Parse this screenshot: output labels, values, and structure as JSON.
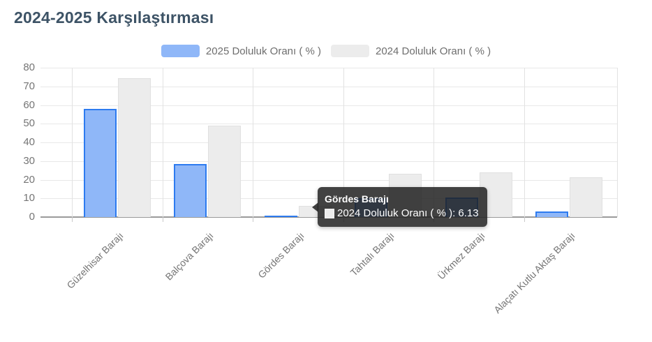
{
  "page": {
    "title": "2024-2025 Karşılaştırması"
  },
  "legend": [
    {
      "label": "2025 Doluluk Oranı ( % )",
      "color": "#8fb7f8"
    },
    {
      "label": "2024 Doluluk Oranı ( % )",
      "color": "#ececec"
    }
  ],
  "tooltip": {
    "title": "Gördes Barajı",
    "series_label": "2024 Doluluk Oranı ( % )",
    "value": "6.13",
    "line": "2024 Doluluk Oranı ( % ): 6.13",
    "swatch_color": "#ececec"
  },
  "chart_data": {
    "type": "bar",
    "title": "2024-2025 Karşılaştırması",
    "categories": [
      "Güzelhisar Barajı",
      "Balçova Barajı",
      "Gördes Barajı",
      "Tahtalı Barajı",
      "Ürkmez Barajı",
      "Alaçatı Kutlu Aktaş Barajı"
    ],
    "series": [
      {
        "name": "2025 Doluluk Oranı ( % )",
        "color": "#8fb7f8",
        "border_color": "#2d7bf0",
        "values": [
          58,
          28.5,
          0.6,
          10,
          10.5,
          3
        ]
      },
      {
        "name": "2024 Doluluk Oranı ( % )",
        "color": "#ececec",
        "border_color": "#e0e0e0",
        "values": [
          74.5,
          49,
          6.13,
          23,
          24,
          21.5
        ]
      }
    ],
    "xlabel": "",
    "ylabel": "",
    "ylim": [
      0,
      80
    ],
    "yticks": [
      0,
      10,
      20,
      30,
      40,
      50,
      60,
      70,
      80
    ],
    "grid": "on",
    "legend_position": "top",
    "highlighted_point": {
      "category": "Gördes Barajı",
      "series": "2024 Doluluk Oranı ( % )",
      "value": 6.13
    }
  }
}
